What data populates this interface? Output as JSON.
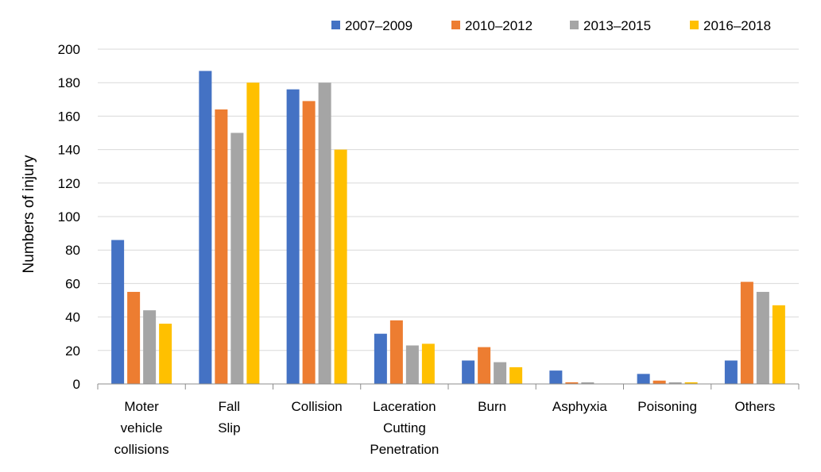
{
  "chart_data": {
    "type": "bar",
    "title": "",
    "xlabel": "",
    "ylabel": "Numbers of injury",
    "ylim": [
      0,
      200
    ],
    "yticks": [
      0,
      20,
      40,
      60,
      80,
      100,
      120,
      140,
      160,
      180,
      200
    ],
    "grid": true,
    "legend_position": "top-right",
    "categories": [
      [
        "Moter",
        "vehicle",
        "collisions"
      ],
      [
        "Fall",
        "Slip"
      ],
      [
        "Collision"
      ],
      [
        "Laceration",
        "Cutting",
        "Penetration"
      ],
      [
        "Burn"
      ],
      [
        "Asphyxia"
      ],
      [
        "Poisoning"
      ],
      [
        "Others"
      ]
    ],
    "series": [
      {
        "name": "2007–2009",
        "color": "#4472C4",
        "values": [
          86,
          187,
          176,
          30,
          14,
          8,
          6,
          14
        ]
      },
      {
        "name": "2010–2012",
        "color": "#ED7D31",
        "values": [
          55,
          164,
          169,
          38,
          22,
          1,
          2,
          61
        ]
      },
      {
        "name": "2013–2015",
        "color": "#A5A5A5",
        "values": [
          44,
          150,
          180,
          23,
          13,
          1,
          1,
          55
        ]
      },
      {
        "name": "2016–2018",
        "color": "#FFC000",
        "values": [
          36,
          180,
          140,
          24,
          10,
          0,
          1,
          47
        ]
      }
    ]
  }
}
